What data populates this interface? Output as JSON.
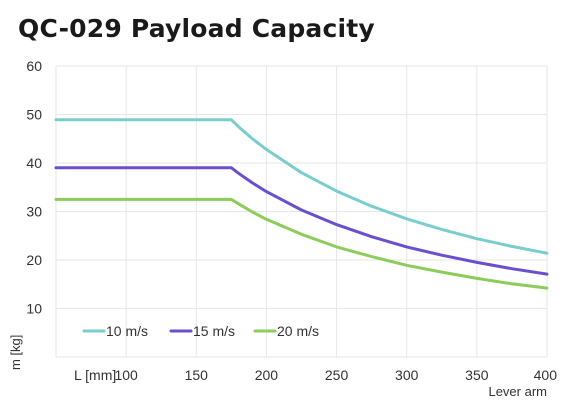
{
  "chart_data": {
    "type": "line",
    "title": "QC-029 Payload Capacity",
    "xlabel": "Lever arm",
    "xlabel_inline": "L [mm]",
    "ylabel": "m [kg]",
    "xlim": [
      50,
      400
    ],
    "ylim": [
      0,
      60
    ],
    "x_ticks": [
      100,
      150,
      200,
      250,
      300,
      350,
      400
    ],
    "y_ticks": [
      10,
      20,
      30,
      40,
      50,
      60
    ],
    "grid": true,
    "legend_position": "bottom-left",
    "x": [
      50,
      175,
      180,
      190,
      200,
      225,
      250,
      275,
      300,
      325,
      350,
      375,
      400
    ],
    "series": [
      {
        "name": "10 m/s",
        "color": "#79cdcd",
        "values": [
          48.9,
          48.9,
          47.5,
          45.0,
          42.8,
          38.0,
          34.2,
          31.1,
          28.5,
          26.3,
          24.4,
          22.8,
          21.4
        ]
      },
      {
        "name": "15 m/s",
        "color": "#6a4fcf",
        "values": [
          39.0,
          39.0,
          37.9,
          35.9,
          34.1,
          30.3,
          27.3,
          24.8,
          22.7,
          21.0,
          19.5,
          18.2,
          17.1
        ]
      },
      {
        "name": "20 m/s",
        "color": "#8ccc5a",
        "values": [
          32.5,
          32.5,
          31.6,
          29.9,
          28.4,
          25.3,
          22.7,
          20.7,
          18.9,
          17.5,
          16.2,
          15.1,
          14.2
        ]
      }
    ]
  }
}
